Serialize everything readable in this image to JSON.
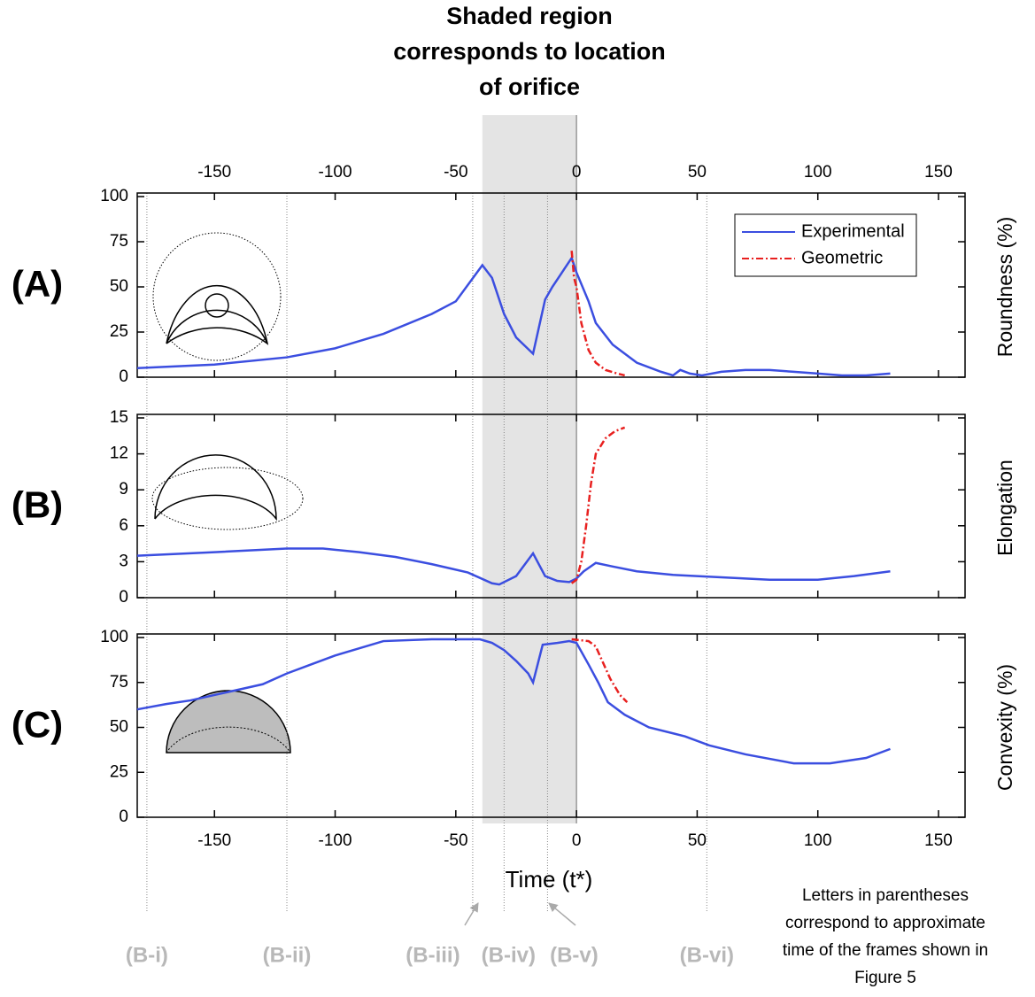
{
  "annotation": [
    "Shaded region",
    "corresponds to location",
    "of orifice"
  ],
  "xlabel": "Time (t*)",
  "shade": [
    -39,
    0
  ],
  "frames": [
    {
      "label": "(B-i)",
      "t": -178
    },
    {
      "label": "(B-ii)",
      "t": -120
    },
    {
      "label": "(B-iii)",
      "t": -43
    },
    {
      "label": "(B-iv)",
      "t": -30
    },
    {
      "label": "(B-v)",
      "t": -12
    },
    {
      "label": "(B-vi)",
      "t": 54
    }
  ],
  "note": [
    "Letters in parentheses",
    "correspond to approximate",
    "time of the frames shown in",
    "Figure 5"
  ],
  "chart_data": [
    {
      "type": "line",
      "panel_label": "(A)",
      "ylabel": "Roundness (%)",
      "xlim": [
        -182,
        161
      ],
      "ylim": [
        0,
        100
      ],
      "xticks": [
        -150,
        -100,
        -50,
        0,
        50,
        100,
        150
      ],
      "xtick_labels": "top",
      "yticks": [
        0,
        25,
        50,
        75,
        100
      ],
      "legend": "upper right",
      "series": [
        {
          "name": "Experimental",
          "color": "#3b4ee0",
          "style": "solid",
          "x": [
            -182,
            -150,
            -120,
            -100,
            -80,
            -60,
            -50,
            -39,
            -35,
            -30,
            -25,
            -18,
            -13,
            -10,
            -5,
            -2,
            0,
            5,
            8,
            15,
            25,
            35,
            40,
            43,
            47,
            52,
            60,
            70,
            80,
            90,
            100,
            110,
            120,
            130
          ],
          "values": [
            5,
            7,
            11,
            16,
            24,
            35,
            42,
            62,
            55,
            35,
            22,
            13,
            43,
            50,
            60,
            66,
            58,
            42,
            30,
            18,
            8,
            3,
            1,
            4,
            2,
            1,
            3,
            4,
            4,
            3,
            2,
            1,
            1,
            2
          ]
        },
        {
          "name": "Geometric",
          "color": "#e8201f",
          "style": "dashdot",
          "x": [
            -2,
            -1,
            0,
            2,
            5,
            8,
            12,
            17,
            20
          ],
          "values": [
            70,
            55,
            50,
            30,
            15,
            8,
            4,
            2,
            1
          ]
        }
      ]
    },
    {
      "type": "line",
      "panel_label": "(B)",
      "ylabel": "Elongation",
      "xlim": [
        -182,
        161
      ],
      "ylim": [
        0,
        15
      ],
      "xticks": [
        -150,
        -100,
        -50,
        0,
        50,
        100,
        150
      ],
      "xtick_labels": "none",
      "yticks": [
        0,
        3,
        6,
        9,
        12,
        15
      ],
      "series": [
        {
          "color": "#3b4ee0",
          "style": "solid",
          "x": [
            -182,
            -150,
            -120,
            -105,
            -90,
            -75,
            -60,
            -45,
            -35,
            -32,
            -25,
            -18,
            -13,
            -8,
            -3,
            0,
            3,
            8,
            15,
            25,
            40,
            60,
            80,
            100,
            115,
            130
          ],
          "values": [
            3.5,
            3.8,
            4.1,
            4.1,
            3.8,
            3.4,
            2.8,
            2.1,
            1.2,
            1.1,
            1.8,
            3.7,
            1.8,
            1.4,
            1.3,
            1.6,
            2.2,
            2.9,
            2.6,
            2.2,
            1.9,
            1.7,
            1.5,
            1.5,
            1.8,
            2.2
          ]
        },
        {
          "color": "#e8201f",
          "style": "dashdot",
          "x": [
            -2,
            0,
            2,
            4,
            6,
            8,
            12,
            16,
            20
          ],
          "values": [
            1.2,
            1.5,
            3,
            6,
            9.5,
            12,
            13.3,
            13.9,
            14.2
          ]
        }
      ]
    },
    {
      "type": "line",
      "panel_label": "(C)",
      "ylabel": "Convexity (%)",
      "xlim": [
        -182,
        161
      ],
      "ylim": [
        0,
        100
      ],
      "xticks": [
        -150,
        -100,
        -50,
        0,
        50,
        100,
        150
      ],
      "xtick_labels": "bottom",
      "yticks": [
        0,
        25,
        50,
        75,
        100
      ],
      "series": [
        {
          "color": "#3b4ee0",
          "style": "solid",
          "x": [
            -182,
            -170,
            -160,
            -150,
            -140,
            -130,
            -120,
            -110,
            -100,
            -90,
            -80,
            -60,
            -40,
            -35,
            -30,
            -25,
            -20,
            -18,
            -14,
            -8,
            -3,
            0,
            5,
            9,
            13,
            20,
            30,
            45,
            55,
            70,
            90,
            105,
            120,
            130
          ],
          "values": [
            60,
            63,
            65,
            68,
            71,
            74,
            80,
            85,
            90,
            94,
            98,
            99,
            99,
            97,
            93,
            87,
            80,
            75,
            96,
            97,
            98,
            97,
            85,
            75,
            64,
            57,
            50,
            45,
            40,
            35,
            30,
            30,
            33,
            38
          ]
        },
        {
          "color": "#e8201f",
          "style": "dashdot",
          "x": [
            -2,
            5,
            8,
            10,
            14,
            18,
            21
          ],
          "values": [
            99,
            98,
            95,
            89,
            77,
            68,
            64
          ]
        }
      ]
    }
  ]
}
